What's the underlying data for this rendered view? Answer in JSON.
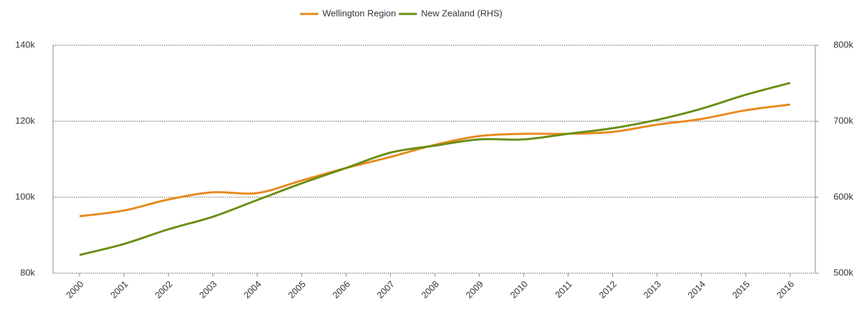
{
  "chart_data": {
    "type": "line",
    "categories": [
      "2000",
      "2001",
      "2002",
      "2003",
      "2004",
      "2005",
      "2006",
      "2007",
      "2008",
      "2009",
      "2010",
      "2011",
      "2012",
      "2013",
      "2014",
      "2015",
      "2016"
    ],
    "series": [
      {
        "name": "Wellington Region",
        "color": "#e8891c",
        "axis": "y",
        "values": [
          95000,
          96500,
          99400,
          101300,
          101100,
          104400,
          107700,
          110600,
          113800,
          116100,
          116700,
          116700,
          117200,
          119100,
          120600,
          122900,
          124400
        ]
      },
      {
        "name": "New Zealand (RHS)",
        "color": "#6a8e13",
        "axis": "y2",
        "values": [
          524000,
          538500,
          557800,
          574300,
          596300,
          618300,
          638500,
          658700,
          667900,
          676100,
          676100,
          683500,
          690800,
          701800,
          716500,
          734900,
          750500
        ]
      }
    ],
    "ylim": [
      80000,
      140000
    ],
    "yticks": [
      {
        "value": 80000,
        "label": "80k"
      },
      {
        "value": 100000,
        "label": "100k"
      },
      {
        "value": 120000,
        "label": "120k"
      },
      {
        "value": 140000,
        "label": "140k"
      }
    ],
    "y2lim": [
      500000,
      800000
    ],
    "y2ticks": [
      {
        "value": 500000,
        "label": "500k"
      },
      {
        "value": 600000,
        "label": "600k"
      },
      {
        "value": 700000,
        "label": "700k"
      },
      {
        "value": 800000,
        "label": "800k"
      }
    ],
    "grid": true,
    "legend": "top"
  }
}
